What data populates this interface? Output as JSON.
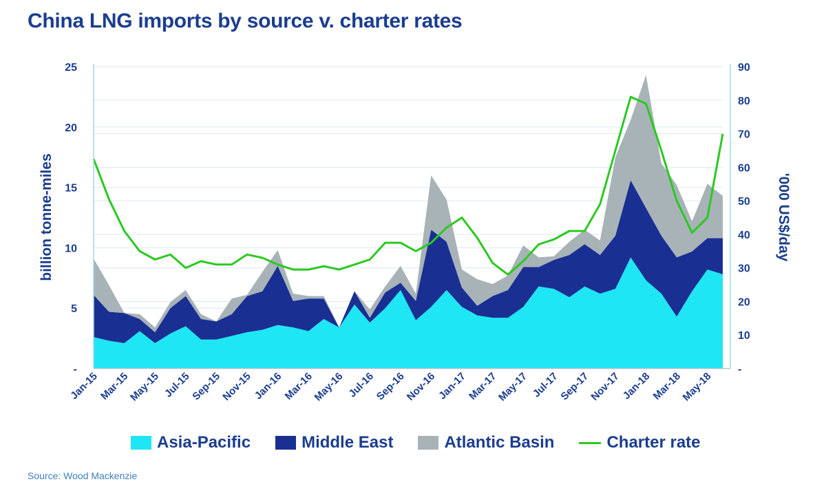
{
  "title": "China LNG imports by source v. charter rates",
  "source": "Source: Wood Mackenzie",
  "colors": {
    "asia_pacific": "#1ee6f4",
    "middle_east": "#1a2f92",
    "atlantic_basin": "#a8b3b8",
    "charter_rate": "#2ac920",
    "axis_text": "#1b3d8f",
    "grid": "#dbe7f0"
  },
  "legend": [
    {
      "key": "asia_pacific",
      "label": "Asia-Pacific"
    },
    {
      "key": "middle_east",
      "label": "Middle East"
    },
    {
      "key": "atlantic_basin",
      "label": "Atlantic Basin"
    },
    {
      "key": "charter_rate",
      "label": "Charter rate"
    }
  ],
  "chart_data": {
    "type": "area",
    "title": "China LNG imports by source v. charter rates",
    "ylabel": "billion tonne-miles",
    "y2label": "'000 US$/day",
    "ylim": [
      0,
      25
    ],
    "y2lim": [
      0,
      90
    ],
    "y_ticks": [
      "-",
      "5",
      "10",
      "15",
      "20",
      "25"
    ],
    "y2_ticks": [
      "-",
      "10",
      "20",
      "30",
      "40",
      "50",
      "60",
      "70",
      "80",
      "90"
    ],
    "x_tick_labels": [
      "Jan-15",
      "Mar-15",
      "May-15",
      "Jul-15",
      "Sep-15",
      "Nov-15",
      "Jan-16",
      "Mar-16",
      "May-16",
      "Jul-16",
      "Sep-16",
      "Nov-16",
      "Jan-17",
      "Mar-17",
      "May-17",
      "Jul-17",
      "Sep-17",
      "Nov-17",
      "Jan-18",
      "Mar-18",
      "May-18"
    ],
    "x": [
      "Jan-15",
      "Feb-15",
      "Mar-15",
      "Apr-15",
      "May-15",
      "Jun-15",
      "Jul-15",
      "Aug-15",
      "Sep-15",
      "Oct-15",
      "Nov-15",
      "Dec-15",
      "Jan-16",
      "Feb-16",
      "Mar-16",
      "Apr-16",
      "May-16",
      "Jun-16",
      "Jul-16",
      "Aug-16",
      "Sep-16",
      "Oct-16",
      "Nov-16",
      "Dec-16",
      "Jan-17",
      "Feb-17",
      "Mar-17",
      "Apr-17",
      "May-17",
      "Jun-17",
      "Jul-17",
      "Aug-17",
      "Sep-17",
      "Oct-17",
      "Nov-17",
      "Dec-17",
      "Jan-18",
      "Feb-18",
      "Mar-18",
      "Apr-18",
      "May-18",
      "Jun-18"
    ],
    "stacked": true,
    "series": [
      {
        "name": "Asia-Pacific",
        "axis": "left",
        "values": [
          2.6,
          2.3,
          2.1,
          3.1,
          2.1,
          2.9,
          3.5,
          2.4,
          2.4,
          2.7,
          3.0,
          3.2,
          3.6,
          3.4,
          3.1,
          4.1,
          3.4,
          5.3,
          3.8,
          5.0,
          6.5,
          4.0,
          5.1,
          6.5,
          5.1,
          4.4,
          4.2,
          4.2,
          5.1,
          6.8,
          6.6,
          5.9,
          6.8,
          6.2,
          6.6,
          9.2,
          7.3,
          6.2,
          4.3,
          6.4,
          8.2,
          7.8
        ]
      },
      {
        "name": "Middle East",
        "axis": "left",
        "values": [
          3.5,
          2.4,
          2.5,
          1.0,
          0.9,
          2.1,
          2.5,
          1.7,
          1.5,
          1.8,
          3.0,
          3.2,
          4.9,
          2.2,
          2.7,
          1.7,
          0.0,
          1.1,
          0.4,
          1.3,
          0.6,
          1.6,
          6.4,
          4.0,
          1.6,
          0.8,
          1.8,
          2.3,
          3.3,
          1.6,
          2.4,
          3.5,
          3.5,
          3.2,
          4.4,
          6.4,
          6.0,
          4.8,
          4.9,
          3.3,
          2.6,
          3.0
        ]
      },
      {
        "name": "Atlantic Basin",
        "axis": "left",
        "values": [
          3.0,
          2.2,
          0.0,
          0.4,
          0.4,
          0.5,
          0.5,
          0.4,
          0.0,
          1.3,
          0.1,
          1.6,
          1.3,
          0.6,
          0.2,
          0.2,
          0.0,
          0.0,
          0.7,
          0.5,
          1.4,
          0.6,
          4.5,
          3.5,
          1.5,
          2.2,
          1.0,
          1.2,
          1.8,
          0.8,
          0.3,
          1.1,
          1.2,
          1.2,
          6.5,
          5.0,
          11.0,
          6.0,
          6.0,
          2.5,
          4.5,
          3.5
        ]
      },
      {
        "name": "Charter rate",
        "axis": "right",
        "type": "line",
        "values": [
          62.5,
          50.5,
          41.0,
          35.0,
          32.5,
          34.0,
          30.0,
          32.0,
          31.0,
          31.0,
          34.0,
          33.0,
          31.0,
          29.5,
          29.5,
          30.5,
          29.5,
          31.0,
          32.5,
          37.5,
          37.5,
          35.0,
          37.5,
          42.0,
          45.0,
          39.0,
          31.5,
          28.0,
          32.0,
          37.0,
          38.5,
          41.0,
          41.0,
          49.0,
          65.0,
          81.0,
          79.0,
          65.0,
          50.0,
          40.5,
          45.0,
          70.0
        ]
      }
    ]
  }
}
